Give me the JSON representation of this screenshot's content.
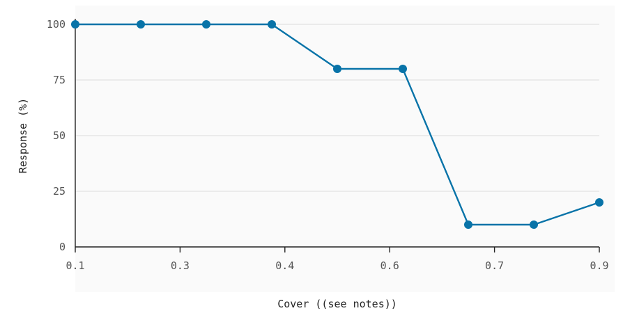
{
  "colors": {
    "background": "#ffffff",
    "plot_area": "#fafafa",
    "series": "#0873a8"
  },
  "chart_data": {
    "type": "line",
    "xlabel": "Cover ((see notes))",
    "ylabel": "Response (%)",
    "xlim": [
      0.1,
      0.9
    ],
    "ylim": [
      0,
      100
    ],
    "x_tick_labels": [
      "0.1",
      "0.3",
      "0.4",
      "0.6",
      "0.7",
      "0.9"
    ],
    "y_tick_labels": [
      "0",
      "25",
      "50",
      "75",
      "100"
    ],
    "y_ticks": [
      0,
      25,
      50,
      75,
      100
    ],
    "grid": "horizontal",
    "legend": "none",
    "series": [
      {
        "x": [
          0.1,
          0.2,
          0.3,
          0.4,
          0.5,
          0.6,
          0.7,
          0.8,
          0.9
        ],
        "values": [
          100,
          100,
          100,
          100,
          80,
          80,
          10,
          10,
          20
        ]
      }
    ]
  }
}
